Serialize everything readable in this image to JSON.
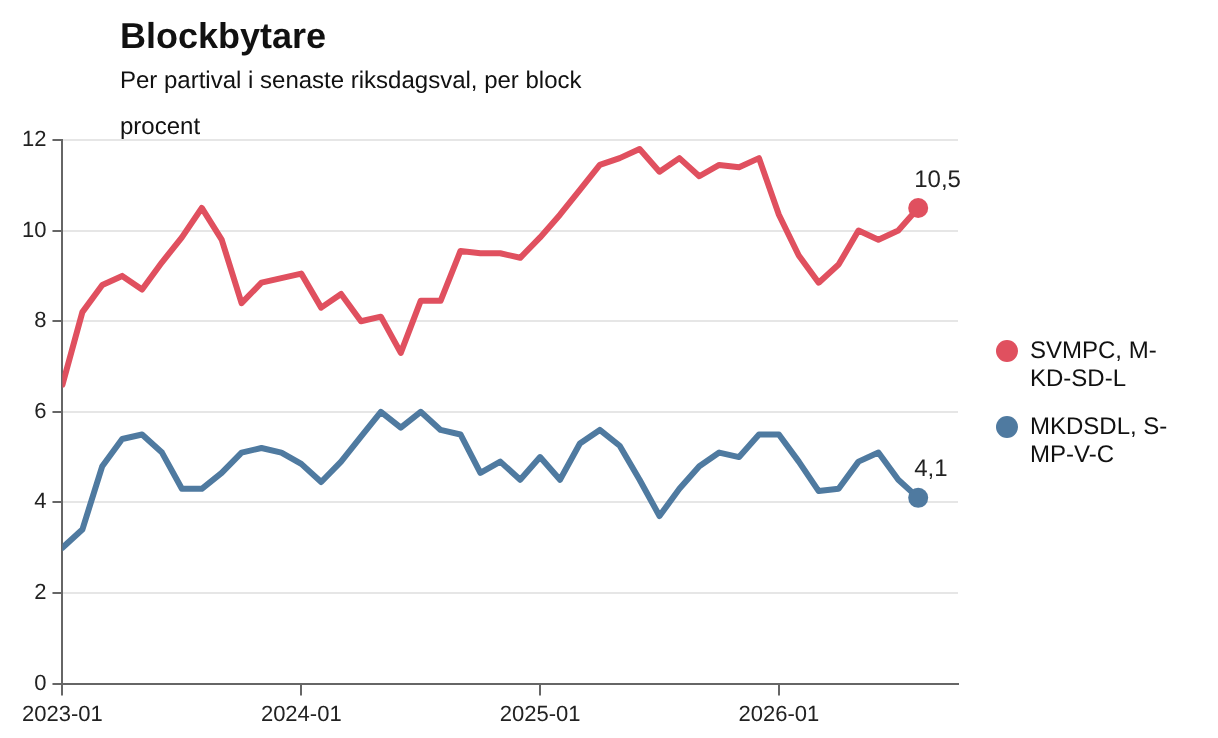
{
  "chart_data": {
    "type": "line",
    "title": "Blockbytare",
    "subtitle": "Per partival i senaste riksdagsval, per block",
    "ylabel": "procent",
    "x": [
      "2023-01",
      "2023-02",
      "2023-03",
      "2023-04",
      "2023-05",
      "2023-06",
      "2023-07",
      "2023-08",
      "2023-09",
      "2023-10",
      "2023-11",
      "2023-12",
      "2024-01",
      "2024-02",
      "2024-03",
      "2024-04",
      "2024-05",
      "2024-06",
      "2024-07",
      "2024-08",
      "2024-09",
      "2024-10",
      "2024-11",
      "2024-12",
      "2025-01",
      "2025-02",
      "2025-03",
      "2025-04",
      "2025-05",
      "2025-06",
      "2025-07",
      "2025-08",
      "2025-09",
      "2025-10",
      "2025-11",
      "2025-12",
      "2026-01",
      "2026-02",
      "2026-03",
      "2026-04",
      "2026-05",
      "2026-06",
      "2026-07",
      "2026-08"
    ],
    "series": [
      {
        "name": "SVMPC, M-KD-SD-L",
        "color": "#e0505f",
        "values": [
          6.6,
          8.2,
          8.8,
          9.0,
          8.7,
          9.3,
          9.85,
          10.5,
          9.8,
          8.4,
          8.85,
          8.95,
          9.05,
          8.3,
          8.6,
          8.0,
          8.1,
          7.3,
          8.45,
          8.45,
          9.55,
          9.5,
          9.5,
          9.4,
          9.85,
          10.35,
          10.9,
          11.45,
          11.6,
          11.8,
          11.3,
          11.6,
          11.2,
          11.45,
          11.4,
          11.6,
          10.35,
          9.45,
          8.85,
          9.25,
          10.0,
          9.8,
          10.0,
          10.5
        ],
        "value_labels": [
          null,
          null,
          null,
          null,
          null,
          null,
          null,
          null,
          null,
          null,
          null,
          null,
          null,
          null,
          null,
          null,
          null,
          null,
          null,
          null,
          null,
          null,
          null,
          null,
          null,
          null,
          null,
          null,
          null,
          null,
          null,
          null,
          null,
          null,
          null,
          null,
          null,
          null,
          null,
          null,
          null,
          null,
          null,
          "10,5"
        ]
      },
      {
        "name": "MKDSDL, S-MP-V-C",
        "color": "#4f7aa0",
        "values": [
          3.0,
          3.4,
          4.8,
          5.4,
          5.5,
          5.1,
          4.3,
          4.3,
          4.65,
          5.1,
          5.2,
          5.1,
          4.85,
          4.45,
          4.9,
          5.45,
          6.0,
          5.65,
          6.0,
          5.6,
          5.5,
          4.65,
          4.9,
          4.5,
          5.0,
          4.5,
          5.3,
          5.6,
          5.25,
          4.5,
          3.7,
          4.3,
          4.8,
          5.1,
          5.0,
          5.5,
          5.5,
          4.9,
          4.25,
          4.3,
          4.9,
          5.1,
          4.5,
          4.1
        ],
        "value_labels": [
          null,
          null,
          null,
          null,
          null,
          null,
          null,
          null,
          null,
          null,
          null,
          null,
          null,
          null,
          null,
          null,
          null,
          null,
          null,
          null,
          null,
          null,
          null,
          null,
          null,
          null,
          null,
          null,
          null,
          null,
          null,
          null,
          null,
          null,
          null,
          null,
          null,
          null,
          null,
          null,
          null,
          null,
          null,
          "4,1"
        ]
      }
    ],
    "xlim": [
      "2023-01",
      "2026-10"
    ],
    "xticks": [
      "2023-01",
      "2024-01",
      "2025-01",
      "2026-01"
    ],
    "ylim": [
      0,
      12
    ],
    "yticks": [
      0,
      2,
      4,
      6,
      8,
      10,
      12
    ],
    "grid": "y",
    "legend": "right",
    "marker": "none",
    "line_style": "solid"
  }
}
